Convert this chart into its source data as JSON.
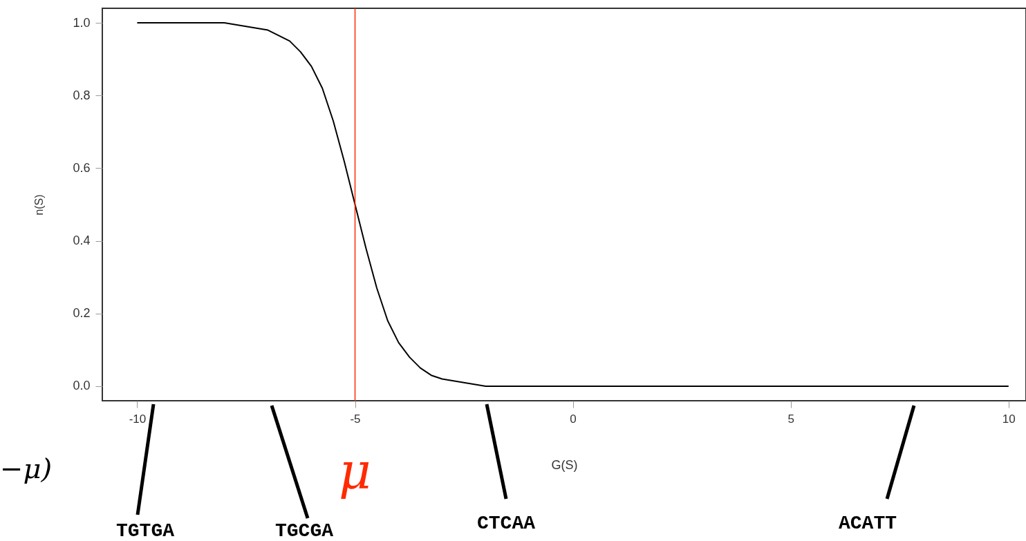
{
  "chart_data": {
    "type": "line",
    "xlabel": "G(S)",
    "ylabel": "n(S)",
    "x": [
      -10,
      -8,
      -7.5,
      -7,
      -6.5,
      -6.25,
      -6,
      -5.75,
      -5.5,
      -5.25,
      -5,
      -4.75,
      -4.5,
      -4.25,
      -4,
      -3.75,
      -3.5,
      -3.25,
      -3,
      -2.5,
      -2,
      0,
      5,
      10
    ],
    "series": [
      {
        "color": "#000000",
        "values": [
          1.0,
          1.0,
          0.99,
          0.98,
          0.95,
          0.92,
          0.88,
          0.82,
          0.73,
          0.62,
          0.5,
          0.38,
          0.27,
          0.18,
          0.12,
          0.08,
          0.05,
          0.03,
          0.02,
          0.01,
          0.0,
          0.0,
          0.0,
          0.0
        ]
      }
    ],
    "xlim": [
      -10.8,
      10.4
    ],
    "xticks": [
      -10,
      -5,
      0,
      5,
      10
    ],
    "ylim": [
      -0.04,
      1.04
    ],
    "yticks": [
      {
        "value": 0,
        "label": "0.0"
      },
      {
        "value": 0.2,
        "label": "0.2"
      },
      {
        "value": 0.4,
        "label": "0.4"
      },
      {
        "value": 0.6,
        "label": "0.6"
      },
      {
        "value": 0.8,
        "label": "0.8"
      },
      {
        "value": 1,
        "label": "1.0"
      }
    ],
    "ref_lines": [
      {
        "axis": "x",
        "value": -5,
        "label": "μ",
        "color": "#ff2a00"
      }
    ],
    "annotations": [
      "TGTGA",
      "TGCGA",
      "CTCAA",
      "ACATT",
      "−μ)"
    ],
    "grid": false,
    "marker": "none",
    "line_style": "solid"
  }
}
